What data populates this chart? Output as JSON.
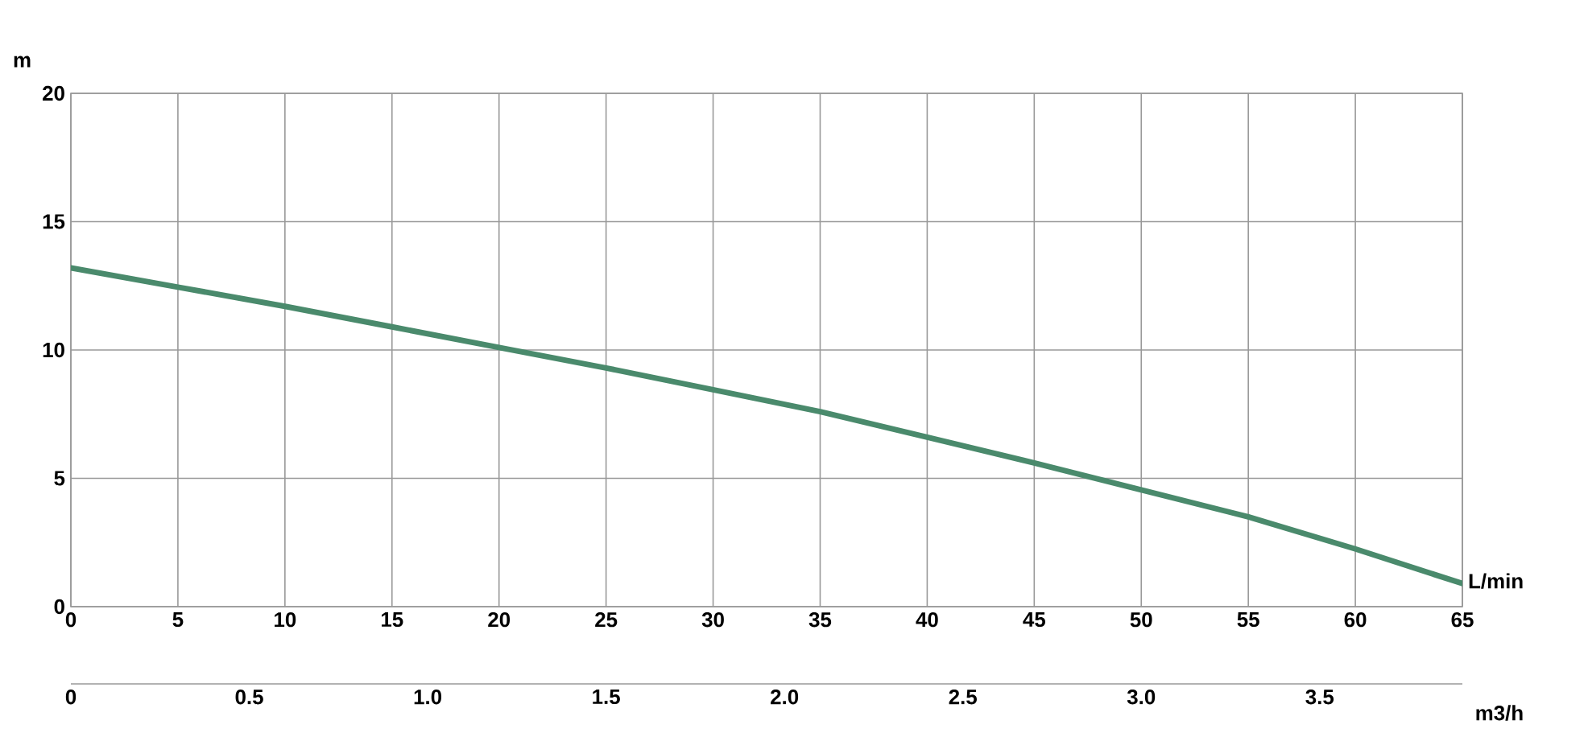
{
  "chart_data": {
    "type": "line",
    "xlabel": "L/min",
    "ylabel": "m",
    "x2label": "m3/h",
    "x": [
      0,
      5,
      10,
      15,
      20,
      25,
      30,
      35,
      40,
      45,
      50,
      55,
      60,
      65
    ],
    "series": [
      {
        "color": "#4a8a6c",
        "values": [
          13.2,
          12.45,
          11.7,
          10.9,
          10.1,
          9.3,
          8.45,
          7.6,
          6.6,
          5.6,
          4.55,
          3.5,
          2.25,
          0.9
        ]
      }
    ],
    "xlim": [
      0,
      65
    ],
    "ylim": [
      0,
      20
    ],
    "xticks": [
      0,
      5,
      10,
      15,
      20,
      25,
      30,
      35,
      40,
      45,
      50,
      55,
      60,
      65
    ],
    "yticks": [
      0,
      5,
      10,
      15,
      20
    ],
    "x2lim": [
      0,
      3.9
    ],
    "x2ticks": [
      0,
      0.5,
      {
        "value": 1.0,
        "label": "1.0"
      },
      1.5,
      {
        "value": 2.0,
        "label": "2.0"
      },
      2.5,
      {
        "value": 3.0,
        "label": "3.0"
      },
      3.5
    ],
    "grid": true
  }
}
